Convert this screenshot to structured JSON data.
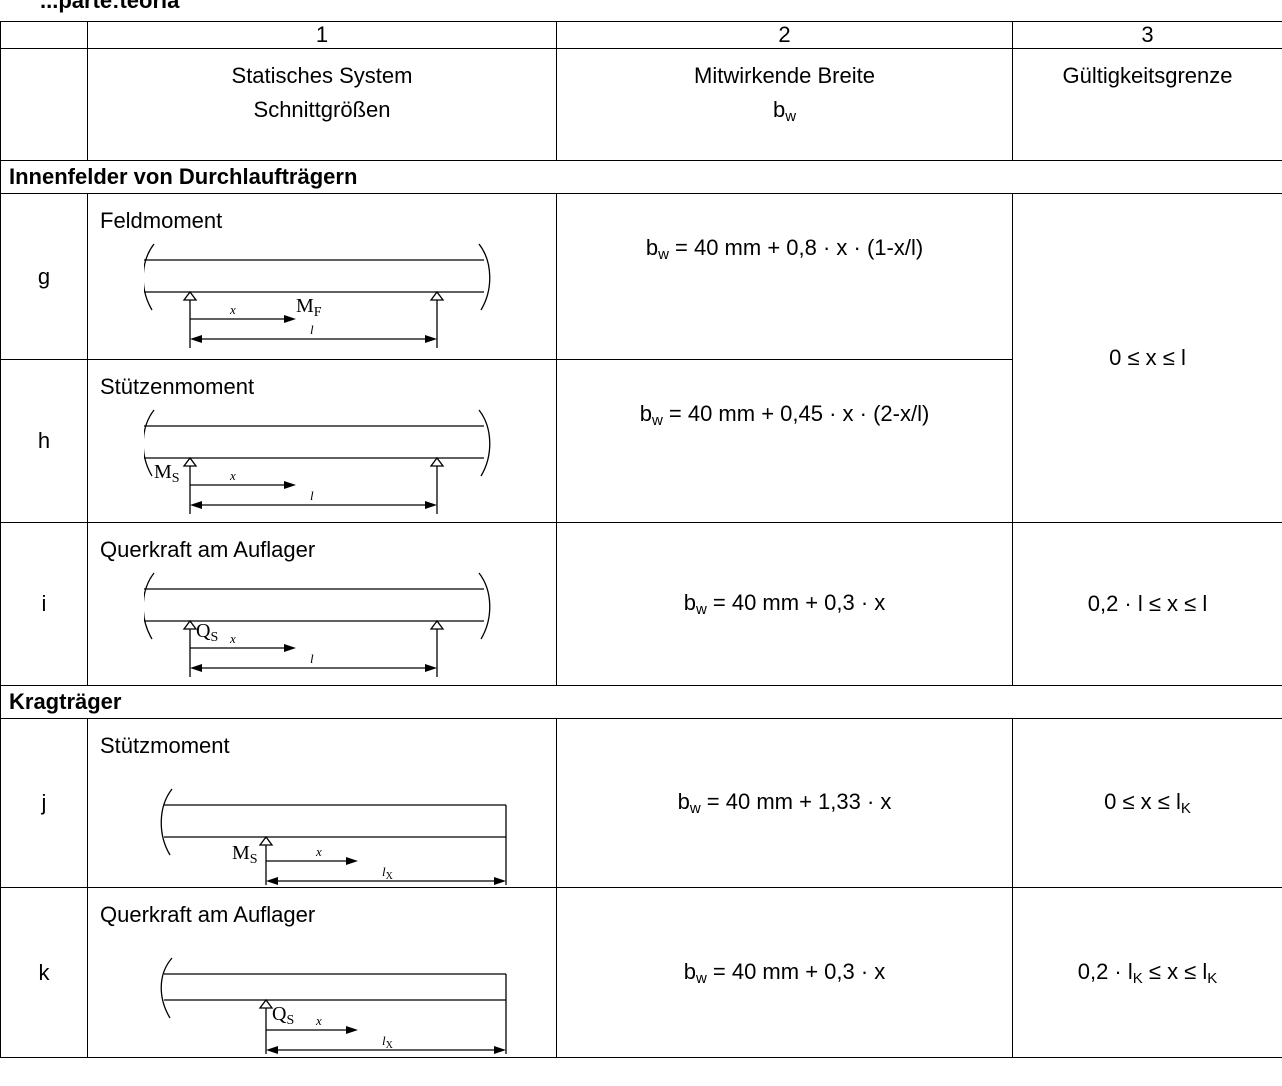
{
  "caption_fragment": "...parte:teoria",
  "header": {
    "col1": "1",
    "col2": "2",
    "col3": "3",
    "col1_line1": "Statisches System",
    "col1_line2": "Schnittgrößen",
    "col2_line1": "Mitwirkende Breite",
    "col2_sym": "b",
    "col2_sub": "w",
    "col3_text": "Gültigkeitsgrenze"
  },
  "sections": {
    "inner": "Innenfelder von Durchlaufträgern",
    "cantilever": "Kragträger"
  },
  "rows": {
    "g": {
      "letter": "g",
      "system": "Feldmoment",
      "moment_label": "M",
      "moment_sub": "F",
      "x_label": "x",
      "span_label": "l",
      "formula_sym": "b",
      "formula_sub": "w",
      "formula_text": " = 40 mm + 0,8 · x · (1-x/l)",
      "limit": "0 ≤ x ≤ l"
    },
    "h": {
      "letter": "h",
      "system": "Stützenmoment",
      "moment_label": "M",
      "moment_sub": "S",
      "x_label": "x",
      "span_label": "l",
      "formula_sym": "b",
      "formula_sub": "w",
      "formula_text": " = 40 mm + 0,45 · x · (2-x/l)"
    },
    "i": {
      "letter": "i",
      "system": "Querkraft am Auflager",
      "moment_label": "Q",
      "moment_sub": "S",
      "x_label": "x",
      "span_label": "l",
      "formula_sym": "b",
      "formula_sub": "w",
      "formula_text": " = 40 mm + 0,3 · x",
      "limit": "0,2 · l ≤ x ≤ l"
    },
    "j": {
      "letter": "j",
      "system": "Stützmoment",
      "moment_label": "M",
      "moment_sub": "S",
      "x_label": "x",
      "span_label": "l",
      "span_sub": "X",
      "formula_sym": "b",
      "formula_sub": "w",
      "formula_text": " = 40 mm + 1,33 · x",
      "limit_main": "0 ≤ x ≤ l",
      "limit_sub": "K"
    },
    "k": {
      "letter": "k",
      "system": "Querkraft am Auflager",
      "moment_label": "Q",
      "moment_sub": "S",
      "x_label": "x",
      "span_label": "l",
      "span_sub": "X",
      "formula_sym": "b",
      "formula_sub": "w",
      "formula_text": " = 40 mm + 0,3 · x",
      "limit_a": "0,2 · l",
      "limit_a_sub": "K",
      "limit_b": " ≤ x ≤ l",
      "limit_b_sub": "K"
    }
  }
}
